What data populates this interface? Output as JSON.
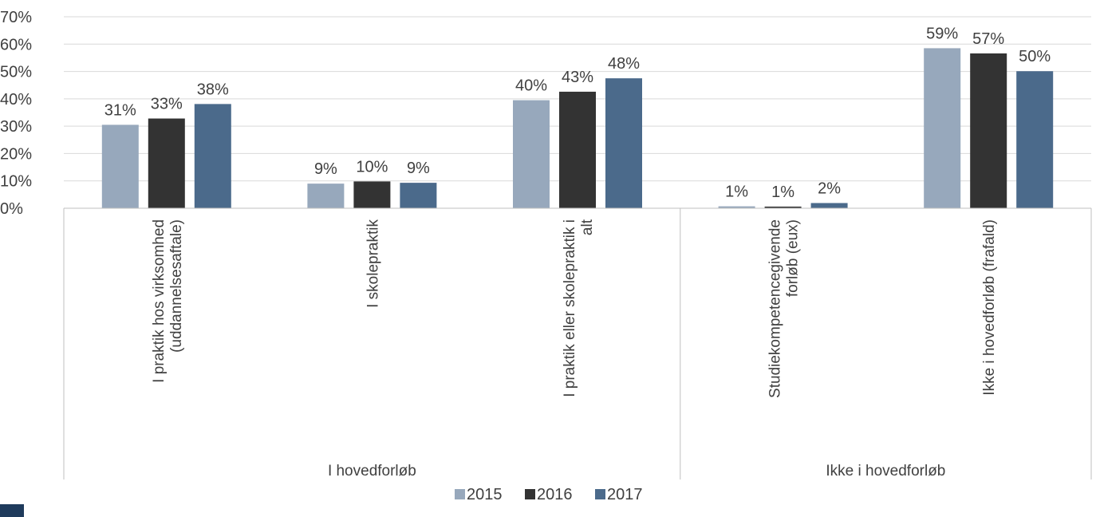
{
  "chart_data": {
    "type": "bar",
    "title": "",
    "xlabel": "",
    "ylabel": "",
    "ylim": [
      0,
      70
    ],
    "yticks": [
      "0%",
      "10%",
      "20%",
      "30%",
      "40%",
      "50%",
      "60%",
      "70%"
    ],
    "grid": true,
    "legend_position": "bottom",
    "categories": [
      [
        "I praktik hos virksomhed",
        "(uddannelsesaftale)"
      ],
      [
        "I skolepraktik"
      ],
      [
        "I praktik eller skolepraktik i",
        "alt"
      ],
      [
        "Studiekompetencegivende",
        "forløb (eux)"
      ],
      [
        "Ikke i hovedforløb (frafald)"
      ]
    ],
    "groups": [
      {
        "label": "I hovedforløb",
        "span": 3
      },
      {
        "label": "Ikke i hovedforløb",
        "span": 2
      }
    ],
    "series": [
      {
        "name": "2015",
        "color": "#97a8bc",
        "values": [
          30.5,
          9,
          39.5,
          0.7,
          58.5
        ],
        "labels": [
          "31%",
          "9%",
          "40%",
          "1%",
          "59%"
        ]
      },
      {
        "name": "2016",
        "color": "#333333",
        "values": [
          32.8,
          9.8,
          42.6,
          0.6,
          56.6
        ],
        "labels": [
          "33%",
          "10%",
          "43%",
          "1%",
          "57%"
        ]
      },
      {
        "name": "2017",
        "color": "#4b6a8b",
        "values": [
          38.1,
          9.3,
          47.5,
          1.9,
          50.1
        ],
        "labels": [
          "38%",
          "9%",
          "48%",
          "2%",
          "50%"
        ]
      }
    ]
  }
}
